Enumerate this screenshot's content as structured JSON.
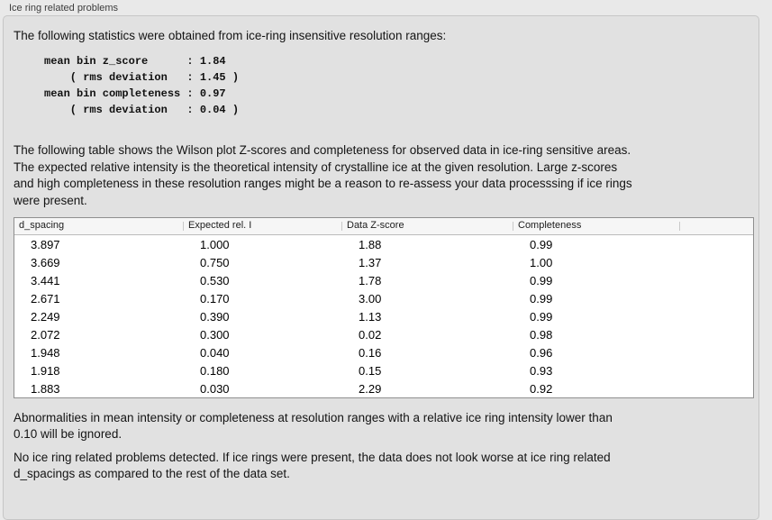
{
  "panel": {
    "title": "Ice ring related problems"
  },
  "intro": "The following statistics were obtained from ice-ring insensitive resolution ranges:",
  "stats_lines": [
    "mean bin z_score      : 1.84",
    "    ( rms deviation   : 1.45 )",
    "mean bin completeness : 0.97",
    "    ( rms deviation   : 0.04 )"
  ],
  "description_lines": [
    "The following table shows the Wilson plot Z-scores and completeness for observed data in ice-ring sensitive areas.",
    "The expected relative intensity is the theoretical intensity of crystalline ice at the given resolution. Large z-scores",
    "and high completeness in these resolution ranges might be a reason to re-assess your data processsing if ice rings",
    "were present."
  ],
  "table": {
    "columns": [
      "d_spacing",
      "Expected rel. I",
      "Data Z-score",
      "Completeness",
      ""
    ],
    "rows": [
      [
        "3.897",
        "1.000",
        "1.88",
        "0.99"
      ],
      [
        "3.669",
        "0.750",
        "1.37",
        "1.00"
      ],
      [
        "3.441",
        "0.530",
        "1.78",
        "0.99"
      ],
      [
        "2.671",
        "0.170",
        "3.00",
        "0.99"
      ],
      [
        "2.249",
        "0.390",
        "1.13",
        "0.99"
      ],
      [
        "2.072",
        "0.300",
        "0.02",
        "0.98"
      ],
      [
        "1.948",
        "0.040",
        "0.16",
        "0.96"
      ],
      [
        "1.918",
        "0.180",
        "0.15",
        "0.93"
      ],
      [
        "1.883",
        "0.030",
        "2.29",
        "0.92"
      ]
    ]
  },
  "footnote_lines": [
    "Abnormalities in mean intensity or completeness at resolution ranges with a relative ice ring intensity lower than",
    "0.10 will be ignored."
  ],
  "conclusion_lines": [
    "No ice ring related problems detected. If ice rings were present, the data does not look worse at ice ring related",
    "d_spacings as compared to the rest of the data set."
  ]
}
